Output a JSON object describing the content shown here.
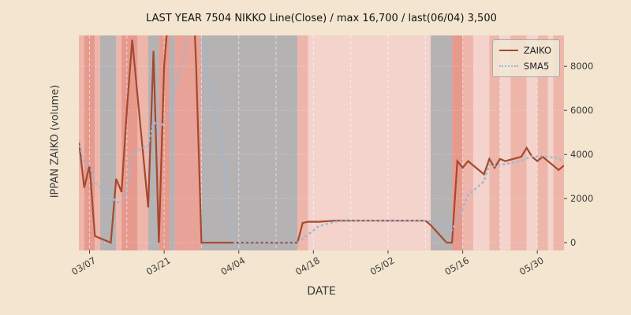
{
  "figure": {
    "background": "#f3e5cf"
  },
  "chart_data": {
    "type": "line",
    "title": "LAST YEAR 7504 NIKKO Line(Close) / max 16,700 / last(06/04) 3,500",
    "xlabel": "DATE",
    "ylabel": "IPPAN ZAIKO (volume)",
    "x_range": [
      "03/05",
      "06/04"
    ],
    "ylim": [
      -350,
      9400
    ],
    "y_ticks": [
      0,
      2000,
      4000,
      6000,
      8000
    ],
    "x_ticks": [
      "03/07",
      "03/21",
      "04/04",
      "04/18",
      "05/02",
      "05/16",
      "05/30"
    ],
    "grid": {
      "vertical_weekly_dashed": true,
      "horizontal_dotted": true,
      "grid_color": "#ffffff"
    },
    "annotations": {
      "max_value": 16700,
      "last_date": "06/04",
      "last_value": 3500
    },
    "legend_position": "upper right",
    "series": [
      {
        "name": "ZAIKO",
        "style": "solid",
        "color": "#a5492f",
        "points": [
          [
            "03/05",
            4600
          ],
          [
            "03/06",
            2500
          ],
          [
            "03/07",
            3500
          ],
          [
            "03/08",
            300
          ],
          [
            "03/11",
            0
          ],
          [
            "03/12",
            2900
          ],
          [
            "03/13",
            2300
          ],
          [
            "03/14",
            6000
          ],
          [
            "03/15",
            9200
          ],
          [
            "03/18",
            1600
          ],
          [
            "03/19",
            8700
          ],
          [
            "03/20",
            0
          ],
          [
            "03/21",
            8000
          ],
          [
            "03/22",
            11000
          ],
          [
            "03/25",
            16700
          ],
          [
            "03/26",
            14000
          ],
          [
            "03/27",
            8000
          ],
          [
            "03/28",
            0
          ],
          [
            "03/29",
            0
          ],
          [
            "04/01",
            0
          ],
          [
            "04/02",
            0
          ],
          [
            "04/03",
            0
          ],
          [
            "04/04",
            0
          ],
          [
            "04/05",
            0
          ],
          [
            "04/08",
            0
          ],
          [
            "04/09",
            0
          ],
          [
            "04/10",
            0
          ],
          [
            "04/11",
            0
          ],
          [
            "04/12",
            0
          ],
          [
            "04/15",
            0
          ],
          [
            "04/16",
            900
          ],
          [
            "04/17",
            950
          ],
          [
            "04/18",
            950
          ],
          [
            "04/19",
            950
          ],
          [
            "04/22",
            1000
          ],
          [
            "04/23",
            1000
          ],
          [
            "04/24",
            1000
          ],
          [
            "04/25",
            1000
          ],
          [
            "04/26",
            1000
          ],
          [
            "04/30",
            1000
          ],
          [
            "05/01",
            1000
          ],
          [
            "05/02",
            1000
          ],
          [
            "05/07",
            1000
          ],
          [
            "05/08",
            1000
          ],
          [
            "05/09",
            1000
          ],
          [
            "05/10",
            800
          ],
          [
            "05/13",
            0
          ],
          [
            "05/14",
            0
          ],
          [
            "05/15",
            3700
          ],
          [
            "05/16",
            3400
          ],
          [
            "05/17",
            3700
          ],
          [
            "05/20",
            3100
          ],
          [
            "05/21",
            3800
          ],
          [
            "05/22",
            3400
          ],
          [
            "05/23",
            3800
          ],
          [
            "05/24",
            3700
          ],
          [
            "05/27",
            3900
          ],
          [
            "05/28",
            4300
          ],
          [
            "05/29",
            3900
          ],
          [
            "05/30",
            3700
          ],
          [
            "05/31",
            3900
          ],
          [
            "06/03",
            3300
          ],
          [
            "06/04",
            3500
          ]
        ]
      },
      {
        "name": "SMA5",
        "style": "dotted",
        "color": "#9cb8d4",
        "derived_from": "ZAIKO",
        "window": 5
      }
    ],
    "band_palette": {
      "light": "#f3d3cc",
      "med": "#eeb6ab",
      "dark": "#e69a8d",
      "salmon": "#e8a297",
      "gray": "#b5b2b4"
    },
    "bands": [
      {
        "from": "03/05",
        "to": "03/06",
        "tone": "med"
      },
      {
        "from": "03/06",
        "to": "03/08",
        "tone": "dark"
      },
      {
        "from": "03/08",
        "to": "03/09",
        "tone": "med"
      },
      {
        "from": "03/09",
        "to": "03/12",
        "tone": "gray"
      },
      {
        "from": "03/12",
        "to": "03/13",
        "tone": "med"
      },
      {
        "from": "03/13",
        "to": "03/16",
        "tone": "dark"
      },
      {
        "from": "03/16",
        "to": "03/18",
        "tone": "med"
      },
      {
        "from": "03/18",
        "to": "03/20",
        "tone": "gray"
      },
      {
        "from": "03/20",
        "to": "03/22",
        "tone": "dark"
      },
      {
        "from": "03/22",
        "to": "03/23",
        "tone": "gray"
      },
      {
        "from": "03/23",
        "to": "03/28",
        "tone": "salmon"
      },
      {
        "from": "03/28",
        "to": "04/15",
        "tone": "gray"
      },
      {
        "from": "04/15",
        "to": "04/17",
        "tone": "med"
      },
      {
        "from": "04/17",
        "to": "05/10",
        "tone": "light"
      },
      {
        "from": "05/10",
        "to": "05/14",
        "tone": "gray"
      },
      {
        "from": "05/14",
        "to": "05/16",
        "tone": "dark"
      },
      {
        "from": "05/16",
        "to": "05/18",
        "tone": "med"
      },
      {
        "from": "05/18",
        "to": "05/21",
        "tone": "light"
      },
      {
        "from": "05/21",
        "to": "05/23",
        "tone": "med"
      },
      {
        "from": "05/23",
        "to": "05/25",
        "tone": "light"
      },
      {
        "from": "05/25",
        "to": "05/28",
        "tone": "med"
      },
      {
        "from": "05/28",
        "to": "05/30",
        "tone": "light"
      },
      {
        "from": "05/30",
        "to": "06/01",
        "tone": "med"
      },
      {
        "from": "06/01",
        "to": "06/02",
        "tone": "light"
      },
      {
        "from": "06/02",
        "to": "06/04",
        "tone": "med"
      }
    ]
  }
}
